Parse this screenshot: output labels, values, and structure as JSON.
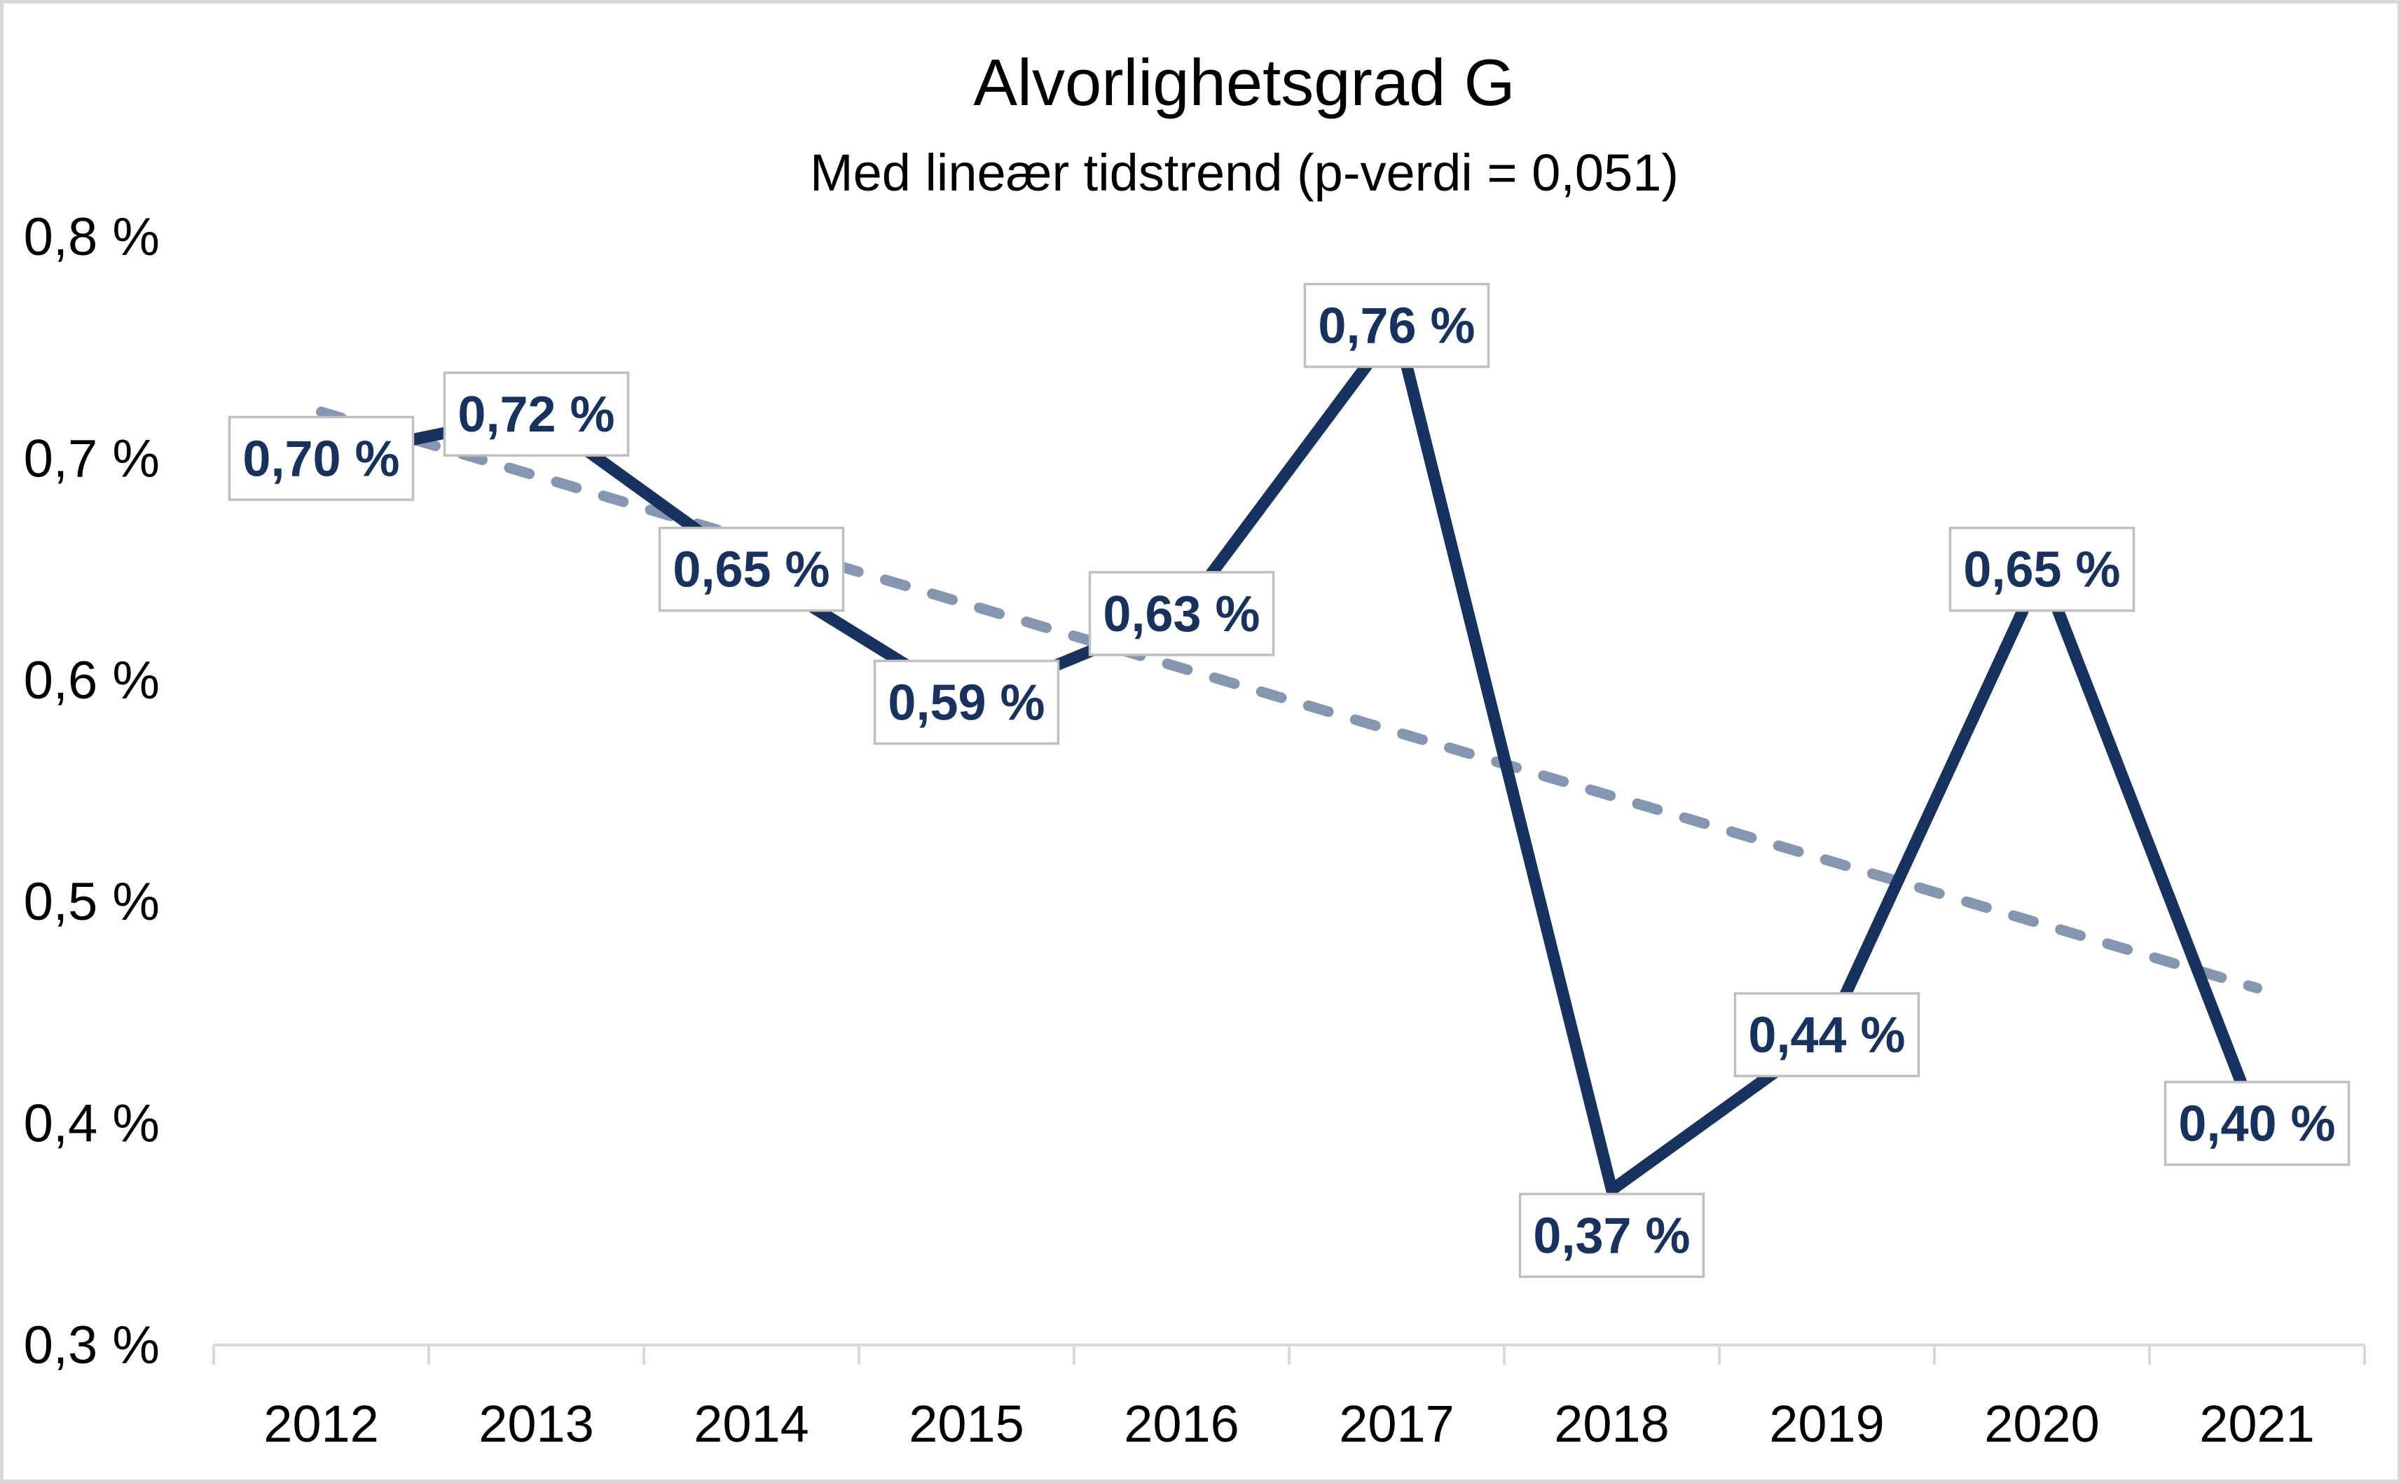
{
  "chart": {
    "title": "Alvorlighetsgrad G",
    "subtitle": "Med lineær tidstrend (p-verdi = 0,051)",
    "chart_data": {
      "type": "line",
      "categories": [
        "2012",
        "2013",
        "2014",
        "2015",
        "2016",
        "2017",
        "2018",
        "2019",
        "2020",
        "2021"
      ],
      "series": [
        {
          "name": "Alvorlighetsgrad G",
          "values": [
            0.7,
            0.72,
            0.65,
            0.59,
            0.63,
            0.76,
            0.37,
            0.44,
            0.65,
            0.4
          ]
        }
      ],
      "data_labels": [
        "0,70 %",
        "0,72 %",
        "0,65 %",
        "0,59 %",
        "0,63 %",
        "0,76 %",
        "0,37 %",
        "0,44 %",
        "0,65 %",
        "0,40 %"
      ],
      "y_tick_labels": [
        "0,8 %",
        "0,7 %",
        "0,6 %",
        "0,5 %",
        "0,4 %",
        "0,3 %"
      ],
      "y_tick_values": [
        0.8,
        0.7,
        0.6,
        0.5,
        0.4,
        0.3
      ],
      "ylim": [
        0.3,
        0.8
      ],
      "grid": false,
      "legend": false,
      "trendline": {
        "style": "dashed",
        "label": "lineær tidstrend",
        "p_value": "0,051",
        "start_value": 0.721,
        "end_value": 0.461
      }
    },
    "colors": {
      "series_line": "#17325F",
      "data_label_text": "#17325F",
      "trend_line": "#8496B0",
      "label_box_fill": "#FFFFFF",
      "label_box_border": "#BFBFBF",
      "axis_line": "#D9D9D9",
      "frame_border": "#D9D9D9",
      "text": "#000000"
    }
  }
}
